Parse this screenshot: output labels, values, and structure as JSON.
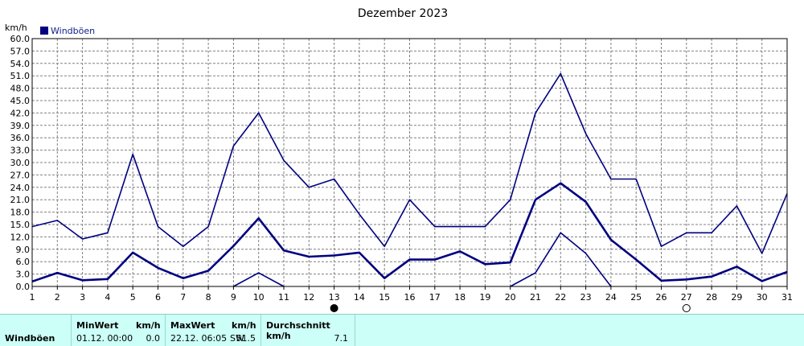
{
  "chart_data": {
    "type": "line",
    "title": "Dezember 2023",
    "ylabel": "km/h",
    "xlabel": "",
    "ylim": [
      0,
      60
    ],
    "yticks": [
      "0.0",
      "3.0",
      "6.0",
      "9.0",
      "12.0",
      "15.0",
      "18.0",
      "21.0",
      "24.0",
      "27.0",
      "30.0",
      "33.0",
      "36.0",
      "39.0",
      "42.0",
      "45.0",
      "48.0",
      "51.0",
      "54.0",
      "57.0",
      "60.0"
    ],
    "x": [
      1,
      2,
      3,
      4,
      5,
      6,
      7,
      8,
      9,
      10,
      11,
      12,
      13,
      14,
      15,
      16,
      17,
      18,
      19,
      20,
      21,
      22,
      23,
      24,
      25,
      26,
      27,
      28,
      29,
      30,
      31
    ],
    "grid": true,
    "legend": {
      "placement": "top-left",
      "entries": [
        "Windböen"
      ]
    },
    "series": [
      {
        "name": "Windböen",
        "role": "max",
        "values": [
          14.5,
          16,
          11.5,
          13,
          32,
          14.5,
          9.7,
          14.5,
          34,
          42,
          30.5,
          24,
          26,
          17.5,
          9.7,
          21,
          14.5,
          14.5,
          14.5,
          21,
          42,
          51.5,
          37,
          26,
          26,
          9.7,
          13,
          13,
          19.5,
          8,
          22.5
        ]
      },
      {
        "name": "Windböen",
        "role": "avg",
        "values": [
          1.2,
          3.3,
          1.5,
          1.8,
          8.2,
          4.5,
          2.0,
          3.8,
          9.8,
          16.5,
          8.7,
          7.2,
          7.5,
          8.2,
          2.0,
          6.5,
          6.5,
          8.5,
          5.4,
          5.8,
          21,
          25,
          20.5,
          11.3,
          6.5,
          1.4,
          1.7,
          2.4,
          4.8,
          1.3,
          3.5
        ]
      },
      {
        "name": "Windböen",
        "role": "min",
        "values": [
          null,
          null,
          null,
          null,
          null,
          null,
          null,
          null,
          0,
          3.3,
          0,
          null,
          null,
          null,
          null,
          null,
          null,
          null,
          null,
          0,
          3.3,
          13,
          8,
          0,
          null,
          null,
          null,
          null,
          null,
          null,
          null
        ]
      }
    ],
    "markers": [
      {
        "day": 13,
        "symbol": "filled-circle"
      },
      {
        "day": 27,
        "symbol": "open-circle"
      }
    ]
  },
  "colors": {
    "line": "#000080",
    "grid": "#808080",
    "stats_bg": "#ccfff7"
  },
  "stats": {
    "label": "Windböen",
    "min_header": "MinWert",
    "min_unit": "km/h",
    "min_date": "01.12.  00:00",
    "min_value": "0.0",
    "max_header": "MaxWert",
    "max_unit": "km/h",
    "max_date": "22.12.  06:05",
    "max_dir": "SW",
    "max_value": "51.5",
    "avg_header": "Durchschnitt km/h",
    "avg_value": "7.1"
  }
}
